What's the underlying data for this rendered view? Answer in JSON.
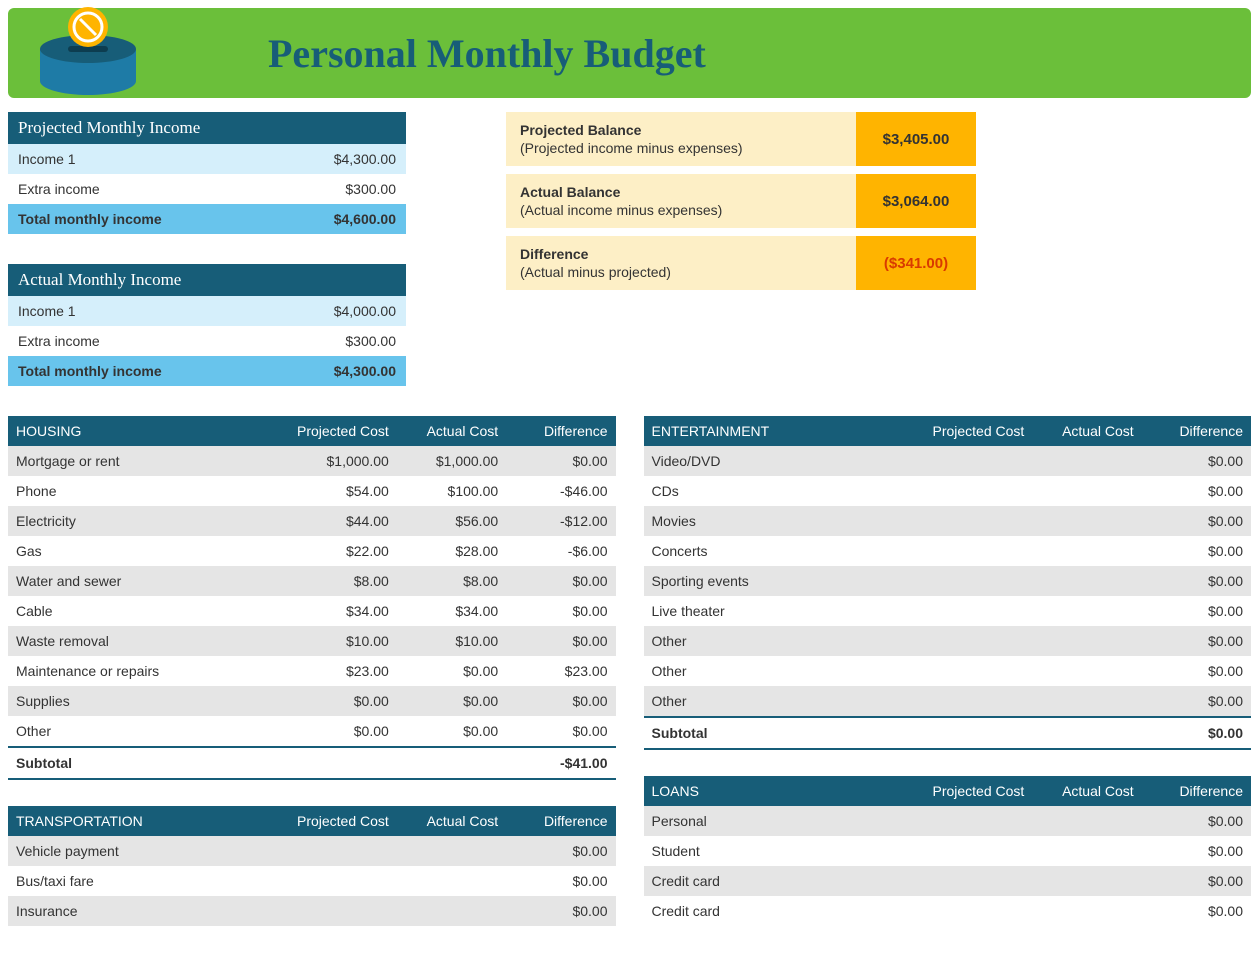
{
  "title": "Personal Monthly Budget",
  "colors": {
    "banner_bg": "#6bbf3a",
    "banner_text": "#175d78",
    "header_bg": "#175d78",
    "income_row0": "#d5effb",
    "income_row1": "#ffffff",
    "income_total": "#68c4ec",
    "bal_label_bg": "#fdefc6",
    "bal_value_bg": "#ffb400",
    "bal_neg_text": "#d93a00",
    "cat_row_odd": "#e5e5e5",
    "cat_row_even": "#ffffff"
  },
  "projected_income": {
    "title": "Projected Monthly Income",
    "rows": [
      {
        "label": "Income 1",
        "value": "$4,300.00"
      },
      {
        "label": "Extra income",
        "value": "$300.00"
      }
    ],
    "total_label": "Total monthly income",
    "total_value": "$4,600.00"
  },
  "actual_income": {
    "title": "Actual Monthly Income",
    "rows": [
      {
        "label": "Income 1",
        "value": "$4,000.00"
      },
      {
        "label": "Extra income",
        "value": "$300.00"
      }
    ],
    "total_label": "Total monthly income",
    "total_value": "$4,300.00"
  },
  "balances": [
    {
      "title": "Projected Balance",
      "sub": "(Projected income minus expenses)",
      "value": "$3,405.00",
      "neg": false
    },
    {
      "title": "Actual Balance",
      "sub": "(Actual income minus expenses)",
      "value": "$3,064.00",
      "neg": false
    },
    {
      "title": "Difference",
      "sub": "(Actual minus projected)",
      "value": "($341.00)",
      "neg": true
    }
  ],
  "col_headers": [
    "Projected Cost",
    "Actual Cost",
    "Difference"
  ],
  "subtotal_label": "Subtotal",
  "left_categories": [
    {
      "name": "HOUSING",
      "rows": [
        {
          "label": "Mortgage or rent",
          "proj": "$1,000.00",
          "act": "$1,000.00",
          "diff": "$0.00"
        },
        {
          "label": "Phone",
          "proj": "$54.00",
          "act": "$100.00",
          "diff": "-$46.00"
        },
        {
          "label": "Electricity",
          "proj": "$44.00",
          "act": "$56.00",
          "diff": "-$12.00"
        },
        {
          "label": "Gas",
          "proj": "$22.00",
          "act": "$28.00",
          "diff": "-$6.00"
        },
        {
          "label": "Water and sewer",
          "proj": "$8.00",
          "act": "$8.00",
          "diff": "$0.00"
        },
        {
          "label": "Cable",
          "proj": "$34.00",
          "act": "$34.00",
          "diff": "$0.00"
        },
        {
          "label": "Waste removal",
          "proj": "$10.00",
          "act": "$10.00",
          "diff": "$0.00"
        },
        {
          "label": "Maintenance or repairs",
          "proj": "$23.00",
          "act": "$0.00",
          "diff": "$23.00"
        },
        {
          "label": "Supplies",
          "proj": "$0.00",
          "act": "$0.00",
          "diff": "$0.00"
        },
        {
          "label": "Other",
          "proj": "$0.00",
          "act": "$0.00",
          "diff": "$0.00"
        }
      ],
      "subtotal": {
        "proj": "",
        "act": "",
        "diff": "-$41.00"
      }
    },
    {
      "name": "TRANSPORTATION",
      "rows": [
        {
          "label": "Vehicle payment",
          "proj": "",
          "act": "",
          "diff": "$0.00"
        },
        {
          "label": "Bus/taxi fare",
          "proj": "",
          "act": "",
          "diff": "$0.00"
        },
        {
          "label": "Insurance",
          "proj": "",
          "act": "",
          "diff": "$0.00"
        }
      ],
      "subtotal": null
    }
  ],
  "right_categories": [
    {
      "name": "ENTERTAINMENT",
      "rows": [
        {
          "label": "Video/DVD",
          "proj": "",
          "act": "",
          "diff": "$0.00"
        },
        {
          "label": "CDs",
          "proj": "",
          "act": "",
          "diff": "$0.00"
        },
        {
          "label": "Movies",
          "proj": "",
          "act": "",
          "diff": "$0.00"
        },
        {
          "label": "Concerts",
          "proj": "",
          "act": "",
          "diff": "$0.00"
        },
        {
          "label": "Sporting events",
          "proj": "",
          "act": "",
          "diff": "$0.00"
        },
        {
          "label": "Live theater",
          "proj": "",
          "act": "",
          "diff": "$0.00"
        },
        {
          "label": "Other",
          "proj": "",
          "act": "",
          "diff": "$0.00"
        },
        {
          "label": "Other",
          "proj": "",
          "act": "",
          "diff": "$0.00"
        },
        {
          "label": "Other",
          "proj": "",
          "act": "",
          "diff": "$0.00"
        }
      ],
      "subtotal": {
        "proj": "",
        "act": "",
        "diff": "$0.00"
      }
    },
    {
      "name": "LOANS",
      "rows": [
        {
          "label": "Personal",
          "proj": "",
          "act": "",
          "diff": "$0.00"
        },
        {
          "label": "Student",
          "proj": "",
          "act": "",
          "diff": "$0.00"
        },
        {
          "label": "Credit card",
          "proj": "",
          "act": "",
          "diff": "$0.00"
        },
        {
          "label": "Credit card",
          "proj": "",
          "act": "",
          "diff": "$0.00"
        }
      ],
      "subtotal": null
    }
  ]
}
